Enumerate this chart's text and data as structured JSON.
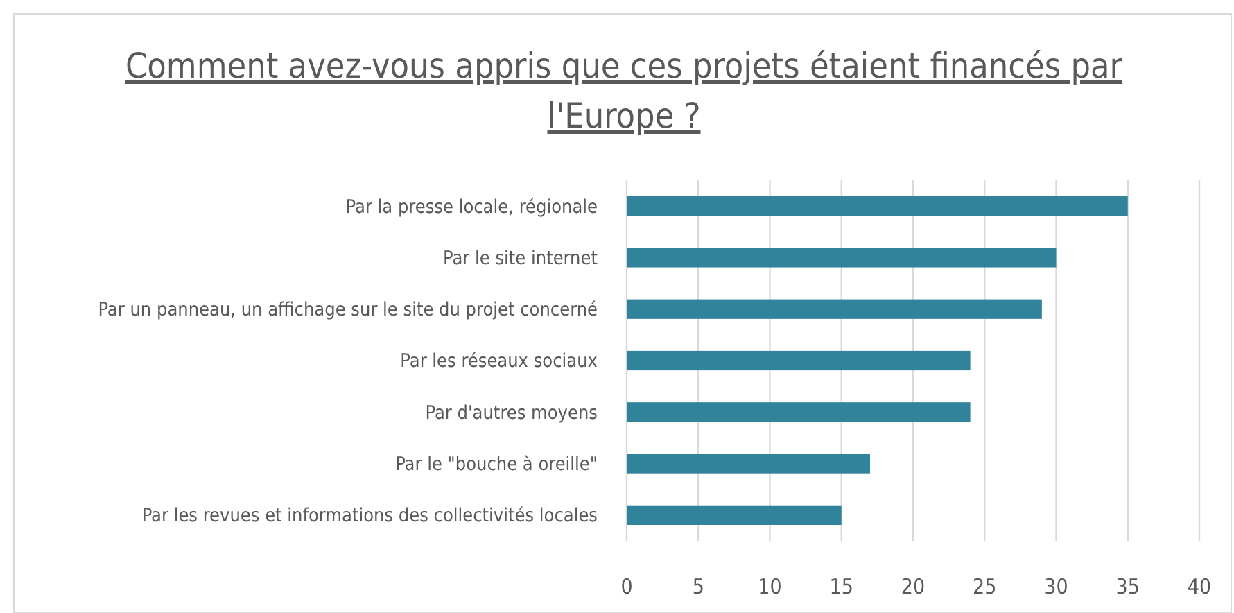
{
  "chart_data": {
    "type": "bar",
    "orientation": "horizontal",
    "title": "Comment avez-vous appris que ces projets étaient financés par l'Europe ?",
    "categories": [
      "Par la presse locale, régionale",
      "Par le site internet",
      "Par un panneau, un affichage sur le site du projet concerné",
      "Par les réseaux sociaux",
      "Par d'autres moyens",
      "Par le \"bouche à oreille\"",
      "Par les revues et informations des collectivités locales"
    ],
    "values": [
      35,
      30,
      29,
      24,
      24,
      17,
      15
    ],
    "color": "#31839b",
    "xlim": [
      0,
      40
    ],
    "xticks": [
      0,
      5,
      10,
      15,
      20,
      25,
      30,
      35,
      40
    ],
    "grid": "x"
  }
}
